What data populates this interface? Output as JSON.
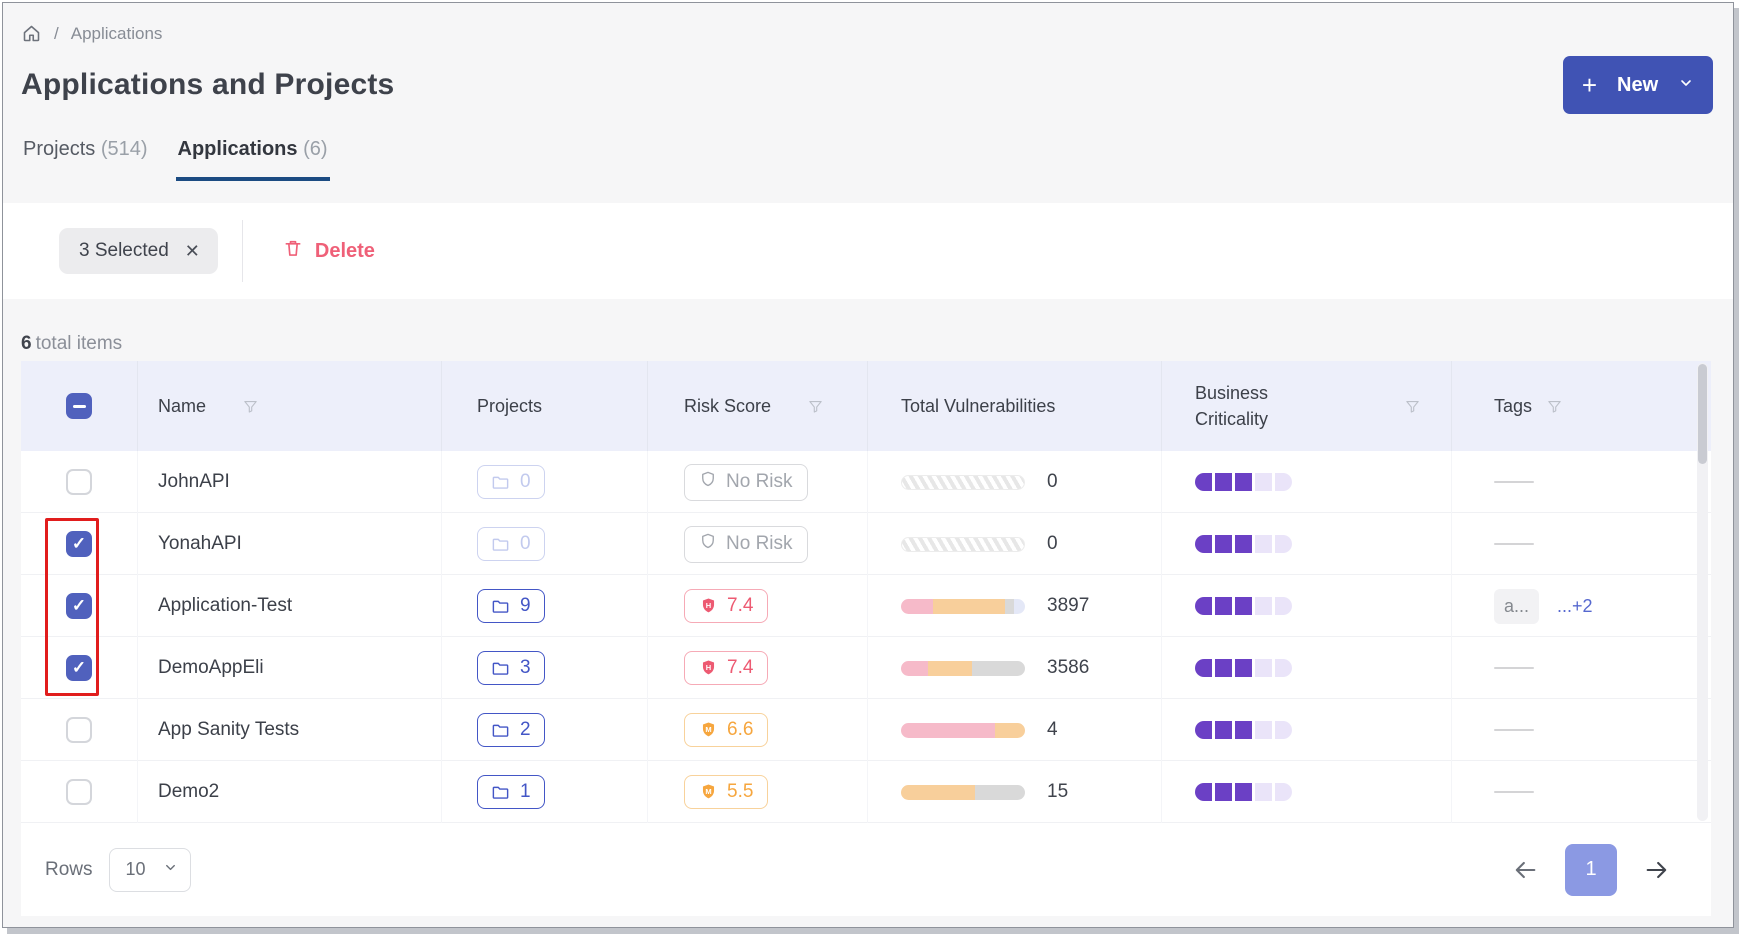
{
  "colors": {
    "accent": "#4053b4",
    "tab_underline": "#1b4b82",
    "delete": "#ef6078",
    "checkbox_checked": "#5061bd",
    "projects_chip": "#4356c6",
    "risk": {
      "none": "#a2a6ad",
      "high": "#ed5a72",
      "medium": "#f6a63e"
    },
    "segments": {
      "pink": "#f6bac9",
      "orange": "#f8cf9b",
      "gray": "#d9d9d9",
      "lavender": "#e4e8f7"
    },
    "criticality_filled": "#6b40c5",
    "criticality_empty": "#eae4f9",
    "page_button": "#8b99e3",
    "annotation_red": "#e11d1d"
  },
  "breadcrumb": {
    "separator": "/",
    "current": "Applications"
  },
  "header": {
    "title": "Applications and Projects",
    "new_button": {
      "plus": "+",
      "label": "New"
    }
  },
  "tabs": {
    "projects": {
      "label": "Projects",
      "count": "(514)"
    },
    "applications": {
      "label": "Applications",
      "count": "(6)"
    }
  },
  "selection_bar": {
    "selected": "3 Selected",
    "close": "✕",
    "delete": "Delete"
  },
  "summary": {
    "count": "6",
    "label": "total items"
  },
  "table": {
    "columns": {
      "name": "Name",
      "projects": "Projects",
      "risk": "Risk Score",
      "vulns": "Total Vulnerabilities",
      "criticality": "Business Criticality",
      "tags": "Tags"
    },
    "select_all_state": "indeterminate",
    "rows": [
      {
        "name": "JohnAPI",
        "checked": false,
        "projects": "0",
        "risk": {
          "level": "none",
          "label": "No Risk",
          "letter": ""
        },
        "vulns": {
          "total": "0",
          "segments": []
        },
        "criticality": {
          "filled": 3,
          "total": 5
        },
        "tags": null
      },
      {
        "name": "YonahAPI",
        "checked": true,
        "projects": "0",
        "risk": {
          "level": "none",
          "label": "No Risk",
          "letter": ""
        },
        "vulns": {
          "total": "0",
          "segments": []
        },
        "criticality": {
          "filled": 3,
          "total": 5
        },
        "tags": null
      },
      {
        "name": "Application-Test",
        "checked": true,
        "projects": "9",
        "risk": {
          "level": "high",
          "label": "7.4",
          "letter": "H"
        },
        "vulns": {
          "total": "3897",
          "segments": [
            {
              "color": "pink",
              "pct": 26
            },
            {
              "color": "orange",
              "pct": 58
            },
            {
              "color": "gray",
              "pct": 7
            },
            {
              "color": "lavender",
              "pct": 9
            }
          ]
        },
        "criticality": {
          "filled": 3,
          "total": 5
        },
        "tags": {
          "chip": "a...",
          "more": "...+2"
        }
      },
      {
        "name": "DemoAppEli",
        "checked": true,
        "projects": "3",
        "risk": {
          "level": "high",
          "label": "7.4",
          "letter": "H"
        },
        "vulns": {
          "total": "3586",
          "segments": [
            {
              "color": "pink",
              "pct": 22
            },
            {
              "color": "orange",
              "pct": 35
            },
            {
              "color": "gray",
              "pct": 43
            }
          ]
        },
        "criticality": {
          "filled": 3,
          "total": 5
        },
        "tags": null
      },
      {
        "name": "App Sanity Tests",
        "checked": false,
        "projects": "2",
        "risk": {
          "level": "medium",
          "label": "6.6",
          "letter": "M"
        },
        "vulns": {
          "total": "4",
          "segments": [
            {
              "color": "pink",
              "pct": 76
            },
            {
              "color": "orange",
              "pct": 24
            }
          ]
        },
        "criticality": {
          "filled": 3,
          "total": 5
        },
        "tags": null
      },
      {
        "name": "Demo2",
        "checked": false,
        "projects": "1",
        "risk": {
          "level": "medium",
          "label": "5.5",
          "letter": "M"
        },
        "vulns": {
          "total": "15",
          "segments": [
            {
              "color": "orange",
              "pct": 60
            },
            {
              "color": "gray",
              "pct": 40
            }
          ]
        },
        "criticality": {
          "filled": 3,
          "total": 5
        },
        "tags": null
      }
    ]
  },
  "footer": {
    "rows_label": "Rows",
    "rows_per_page": "10",
    "page": "1"
  }
}
